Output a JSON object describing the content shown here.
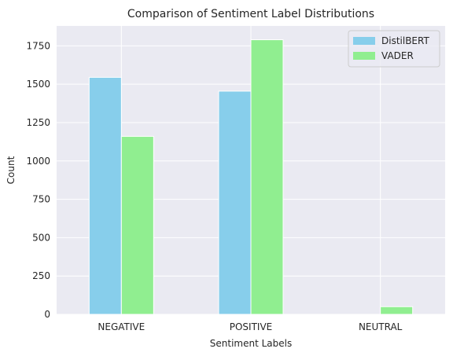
{
  "chart_data": {
    "type": "bar",
    "title": "Comparison of Sentiment Label Distributions",
    "xlabel": "Sentiment Labels",
    "ylabel": "Count",
    "categories": [
      "NEGATIVE",
      "POSITIVE",
      "NEUTRAL"
    ],
    "series": [
      {
        "name": "DistilBERT",
        "values": [
          1545,
          1455,
          0
        ],
        "color": "#87CEEB"
      },
      {
        "name": "VADER",
        "values": [
          1160,
          1790,
          50
        ],
        "color": "#90EE90"
      }
    ],
    "ylim": [
      0,
      1880
    ],
    "yticks": [
      0,
      250,
      500,
      750,
      1000,
      1250,
      1500,
      1750
    ],
    "grid": true,
    "legend_position": "top-right",
    "background": "#EAEAF2"
  }
}
